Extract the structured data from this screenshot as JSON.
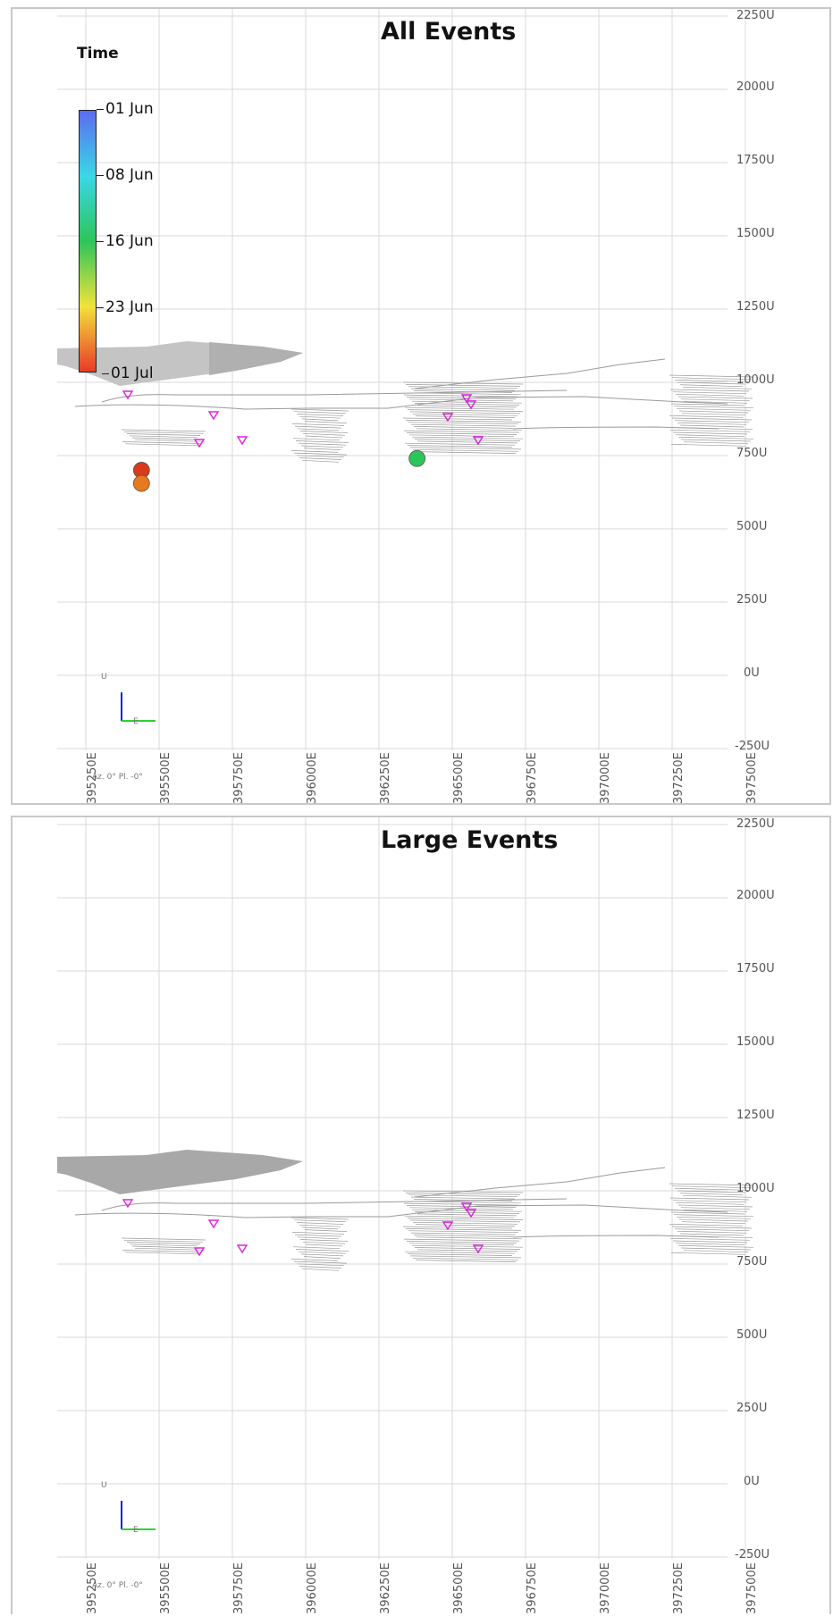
{
  "panels": [
    {
      "title": "All Events",
      "y_ticks": [
        "2250U",
        "2000U",
        "1750U",
        "1500U",
        "1250U",
        "1000U",
        "750U",
        "500U",
        "250U",
        "0U",
        "-250U"
      ],
      "x_ticks": [
        "395250E",
        "395500E",
        "395750E",
        "396000E",
        "396250E",
        "396500E",
        "396750E",
        "397000E",
        "397250E",
        "397500E"
      ],
      "legend": {
        "title": "Time",
        "ticks": [
          "01 Jun",
          "08 Jun",
          "16 Jun",
          "23 Jun",
          "01 Jul"
        ]
      },
      "view_label": "Az. 0° Pl. -0°",
      "axis_triad": {
        "up": "U",
        "east": "E"
      },
      "sensor_marker_color": "#e020e0",
      "events": [
        {
          "easting": 395440,
          "elevation": 700,
          "date": "29 Jun",
          "color": "#d83a1e"
        },
        {
          "easting": 395440,
          "elevation": 655,
          "date": "27 Jun",
          "color": "#e87a1e"
        },
        {
          "easting": 396380,
          "elevation": 740,
          "date": "14 Jun",
          "color": "#2cc55a"
        }
      ]
    },
    {
      "title": "Large Events",
      "y_ticks": [
        "2250U",
        "2000U",
        "1750U",
        "1500U",
        "1250U",
        "1000U",
        "750U",
        "500U",
        "250U",
        "0U",
        "-250U"
      ],
      "x_ticks": [
        "395250E",
        "395500E",
        "395750E",
        "396000E",
        "396250E",
        "396500E",
        "396750E",
        "397000E",
        "397250E",
        "397500E"
      ],
      "view_label": "Az. 0° Pl. -0°",
      "axis_triad": {
        "up": "U",
        "east": "E"
      },
      "sensor_marker_color": "#e020e0",
      "events": []
    }
  ]
}
